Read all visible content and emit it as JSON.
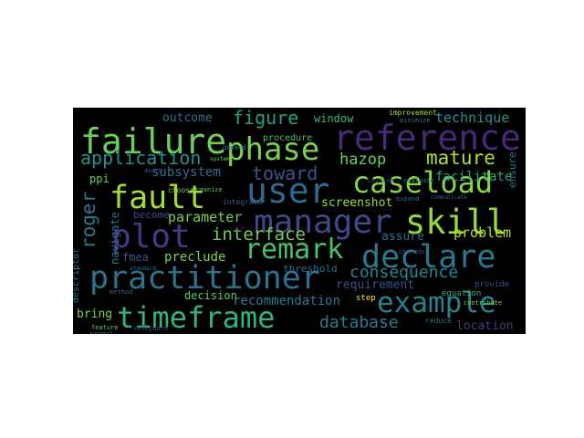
{
  "words": [
    {
      "text": "failure",
      "color": "#6ece58"
    },
    {
      "text": "reference",
      "color": "#482878"
    },
    {
      "text": "phase",
      "color": "#7ad151"
    },
    {
      "text": "user",
      "color": "#31688e"
    },
    {
      "text": "fault",
      "color": "#a5db36"
    },
    {
      "text": "caseload",
      "color": "#86d549"
    },
    {
      "text": "manager",
      "color": "#3e4989"
    },
    {
      "text": "skill",
      "color": "#95d840"
    },
    {
      "text": "plot",
      "color": "#443983"
    },
    {
      "text": "remark",
      "color": "#4ac16d"
    },
    {
      "text": "declare",
      "color": "#2a788e"
    },
    {
      "text": "practitioner",
      "color": "#2c728e"
    },
    {
      "text": "example",
      "color": "#26828e"
    },
    {
      "text": "timeframe",
      "color": "#2fb47c"
    },
    {
      "text": "application",
      "color": "#21918c"
    },
    {
      "text": "hazop",
      "color": "#6ece58"
    },
    {
      "text": "mature",
      "color": "#b5de2b"
    },
    {
      "text": "figure",
      "color": "#1fa188"
    },
    {
      "text": "interface",
      "color": "#6ece58"
    },
    {
      "text": "toward",
      "color": "#3b528b"
    },
    {
      "text": "consequence",
      "color": "#25848e"
    },
    {
      "text": "roger",
      "color": "#2a788e"
    },
    {
      "text": "database",
      "color": "#277f8e"
    },
    {
      "text": "technique",
      "color": "#20928c"
    },
    {
      "text": "facilitate",
      "color": "#21a685"
    },
    {
      "text": "recommendation",
      "color": "#287c8e"
    },
    {
      "text": "parameter",
      "color": "#7ad151"
    },
    {
      "text": "problem",
      "color": "#b5de2b"
    },
    {
      "text": "requirement",
      "color": "#3b528b"
    },
    {
      "text": "subsystem",
      "color": "#2d708e"
    },
    {
      "text": "outcome",
      "color": "#2c728e"
    },
    {
      "text": "window",
      "color": "#35b779"
    },
    {
      "text": "screenshot",
      "color": "#a0da39"
    },
    {
      "text": "navigate",
      "color": "#2d708e"
    },
    {
      "text": "preclude",
      "color": "#7ad151"
    },
    {
      "text": "assure",
      "color": "#2e6f8e"
    },
    {
      "text": "location",
      "color": "#443983"
    },
    {
      "text": "ensure",
      "color": "#2a788e"
    },
    {
      "text": "decision",
      "color": "#5ec962"
    },
    {
      "text": "threshold",
      "color": "#2c728e"
    },
    {
      "text": "become",
      "color": "#3e4989"
    },
    {
      "text": "bring",
      "color": "#7ad151"
    },
    {
      "text": "fmea",
      "color": "#3b528b"
    },
    {
      "text": "procedure",
      "color": "#4ac16d"
    },
    {
      "text": "ppi",
      "color": "#6ece58"
    },
    {
      "text": "descriptor",
      "color": "#2a788e"
    },
    {
      "text": "improvement",
      "color": "#a5db36"
    },
    {
      "text": "integrate",
      "color": "#31688e"
    },
    {
      "text": "include",
      "color": "#3e4989"
    },
    {
      "text": "step",
      "color": "#fde725"
    },
    {
      "text": "equation",
      "color": "#35b779"
    },
    {
      "text": "provide",
      "color": "#3b528b"
    },
    {
      "text": "reduce",
      "color": "#2d708e"
    },
    {
      "text": "feature",
      "color": "#6ece58"
    },
    {
      "text": "safeguard",
      "color": "#3e4989"
    },
    {
      "text": "suggest",
      "color": "#2c728e"
    },
    {
      "text": "method",
      "color": "#31688e"
    },
    {
      "text": "standard",
      "color": "#2a788e"
    },
    {
      "text": "contribute",
      "color": "#7ad151"
    },
    {
      "text": "expand",
      "color": "#31688e"
    },
    {
      "text": "organize",
      "color": "#5ec962"
    },
    {
      "text": "choose",
      "color": "#7ad151"
    },
    {
      "text": "evaluate",
      "color": "#2c728e"
    },
    {
      "text": "involve",
      "color": "#3e4989"
    },
    {
      "text": "demand",
      "color": "#2a788e"
    },
    {
      "text": "minimize",
      "color": "#2c728e"
    },
    {
      "text": "communicate",
      "color": "#31688e"
    },
    {
      "text": "denote",
      "color": "#3b528b"
    },
    {
      "text": "support",
      "color": "#440154"
    },
    {
      "text": "system",
      "color": "#6ece58"
    }
  ]
}
